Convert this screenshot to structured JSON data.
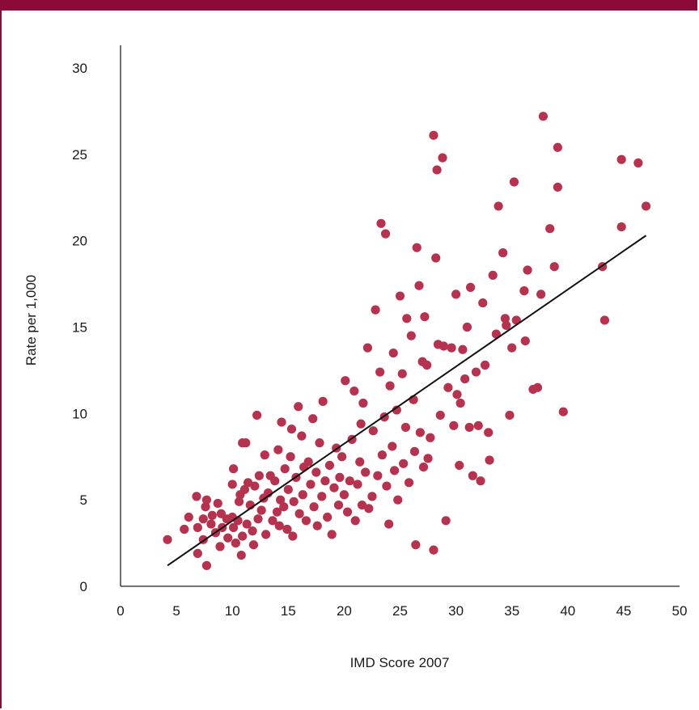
{
  "colors": {
    "accent": "#8b0a3a",
    "point": "#b5334f",
    "trend": "#111111",
    "axis": "#222222"
  },
  "chart_data": {
    "type": "scatter",
    "title": "",
    "xlabel": "IMD Score 2007",
    "ylabel": "Rate per 1,000",
    "xlim": [
      0,
      50
    ],
    "ylim": [
      0,
      30
    ],
    "x_ticks": [
      0,
      5,
      10,
      15,
      20,
      25,
      30,
      35,
      40,
      45,
      50
    ],
    "y_ticks": [
      0,
      5,
      10,
      15,
      20,
      25,
      30
    ],
    "grid": false,
    "legend": "none",
    "trendline": {
      "x": [
        4.2,
        47.0
      ],
      "y": [
        1.2,
        20.3
      ]
    },
    "points": [
      [
        4.2,
        2.7
      ],
      [
        5.7,
        3.3
      ],
      [
        6.1,
        4.0
      ],
      [
        6.8,
        5.2
      ],
      [
        6.9,
        3.4
      ],
      [
        6.9,
        1.9
      ],
      [
        7.4,
        3.9
      ],
      [
        7.4,
        2.7
      ],
      [
        7.6,
        4.6
      ],
      [
        7.7,
        5.0
      ],
      [
        7.7,
        1.2
      ],
      [
        8.1,
        3.6
      ],
      [
        8.2,
        4.1
      ],
      [
        8.5,
        3.1
      ],
      [
        8.7,
        4.8
      ],
      [
        8.9,
        2.3
      ],
      [
        9.0,
        4.2
      ],
      [
        9.1,
        3.4
      ],
      [
        9.5,
        3.9
      ],
      [
        9.6,
        2.8
      ],
      [
        10.0,
        4.0
      ],
      [
        10.0,
        5.9
      ],
      [
        10.1,
        6.8
      ],
      [
        10.1,
        3.4
      ],
      [
        10.3,
        2.5
      ],
      [
        10.5,
        3.8
      ],
      [
        10.6,
        4.9
      ],
      [
        10.7,
        5.3
      ],
      [
        10.8,
        1.8
      ],
      [
        10.9,
        8.3
      ],
      [
        10.9,
        2.9
      ],
      [
        11.1,
        5.6
      ],
      [
        11.2,
        8.3
      ],
      [
        11.3,
        3.6
      ],
      [
        11.4,
        6.0
      ],
      [
        11.6,
        4.7
      ],
      [
        11.8,
        3.2
      ],
      [
        11.9,
        2.4
      ],
      [
        12.0,
        5.8
      ],
      [
        12.2,
        9.9
      ],
      [
        12.3,
        3.9
      ],
      [
        12.4,
        6.4
      ],
      [
        12.6,
        4.4
      ],
      [
        12.8,
        5.1
      ],
      [
        12.9,
        7.6
      ],
      [
        13.0,
        3.0
      ],
      [
        13.2,
        5.4
      ],
      [
        13.4,
        6.4
      ],
      [
        13.6,
        3.8
      ],
      [
        13.8,
        6.1
      ],
      [
        14.0,
        4.3
      ],
      [
        14.1,
        7.9
      ],
      [
        14.2,
        3.5
      ],
      [
        14.3,
        5.0
      ],
      [
        14.4,
        9.5
      ],
      [
        14.6,
        4.6
      ],
      [
        14.7,
        6.8
      ],
      [
        14.9,
        3.3
      ],
      [
        15.0,
        5.6
      ],
      [
        15.2,
        7.5
      ],
      [
        15.3,
        9.1
      ],
      [
        15.4,
        2.9
      ],
      [
        15.5,
        4.9
      ],
      [
        15.7,
        6.3
      ],
      [
        15.9,
        10.4
      ],
      [
        16.0,
        4.2
      ],
      [
        16.2,
        8.7
      ],
      [
        16.3,
        5.3
      ],
      [
        16.4,
        6.9
      ],
      [
        16.6,
        3.8
      ],
      [
        16.8,
        7.2
      ],
      [
        17.0,
        5.9
      ],
      [
        17.2,
        9.7
      ],
      [
        17.3,
        4.6
      ],
      [
        17.5,
        6.6
      ],
      [
        17.6,
        3.5
      ],
      [
        17.8,
        8.3
      ],
      [
        18.0,
        5.2
      ],
      [
        18.1,
        10.7
      ],
      [
        18.3,
        6.1
      ],
      [
        18.5,
        4.0
      ],
      [
        18.7,
        7.0
      ],
      [
        18.9,
        3.0
      ],
      [
        19.1,
        5.7
      ],
      [
        19.3,
        8.0
      ],
      [
        19.5,
        4.7
      ],
      [
        19.6,
        6.3
      ],
      [
        19.8,
        7.5
      ],
      [
        20.0,
        5.3
      ],
      [
        20.1,
        11.9
      ],
      [
        20.3,
        4.3
      ],
      [
        20.5,
        6.1
      ],
      [
        20.7,
        8.5
      ],
      [
        20.9,
        11.3
      ],
      [
        21.0,
        3.8
      ],
      [
        21.2,
        5.9
      ],
      [
        21.4,
        7.2
      ],
      [
        21.5,
        9.4
      ],
      [
        21.6,
        4.7
      ],
      [
        21.7,
        10.6
      ],
      [
        21.9,
        6.6
      ],
      [
        22.1,
        13.8
      ],
      [
        22.2,
        4.5
      ],
      [
        22.5,
        5.2
      ],
      [
        22.6,
        9.0
      ],
      [
        22.8,
        16.0
      ],
      [
        23.0,
        6.4
      ],
      [
        23.2,
        12.4
      ],
      [
        23.3,
        21.0
      ],
      [
        23.4,
        7.6
      ],
      [
        23.6,
        9.8
      ],
      [
        23.7,
        20.4
      ],
      [
        23.8,
        5.8
      ],
      [
        24.0,
        3.6
      ],
      [
        24.1,
        11.6
      ],
      [
        24.3,
        8.1
      ],
      [
        24.4,
        13.5
      ],
      [
        24.5,
        6.7
      ],
      [
        24.7,
        10.2
      ],
      [
        24.8,
        5.0
      ],
      [
        25.0,
        16.8
      ],
      [
        25.2,
        12.3
      ],
      [
        25.3,
        7.1
      ],
      [
        25.5,
        9.2
      ],
      [
        25.6,
        15.5
      ],
      [
        25.8,
        6.0
      ],
      [
        26.0,
        14.5
      ],
      [
        26.2,
        10.8
      ],
      [
        26.3,
        7.8
      ],
      [
        26.4,
        2.4
      ],
      [
        26.5,
        19.6
      ],
      [
        26.7,
        17.4
      ],
      [
        26.8,
        8.9
      ],
      [
        27.0,
        13.0
      ],
      [
        27.1,
        6.9
      ],
      [
        27.2,
        15.6
      ],
      [
        27.4,
        12.8
      ],
      [
        27.5,
        7.4
      ],
      [
        27.7,
        8.6
      ],
      [
        28.0,
        2.1
      ],
      [
        28.0,
        26.1
      ],
      [
        28.2,
        19.0
      ],
      [
        28.3,
        24.1
      ],
      [
        28.4,
        14.0
      ],
      [
        28.6,
        9.9
      ],
      [
        28.8,
        24.8
      ],
      [
        28.9,
        13.9
      ],
      [
        29.1,
        3.8
      ],
      [
        29.3,
        11.5
      ],
      [
        29.6,
        13.8
      ],
      [
        29.8,
        9.3
      ],
      [
        30.0,
        16.9
      ],
      [
        30.1,
        11.1
      ],
      [
        30.3,
        7.0
      ],
      [
        30.4,
        10.6
      ],
      [
        30.6,
        13.7
      ],
      [
        30.8,
        12.0
      ],
      [
        31.0,
        15.0
      ],
      [
        31.2,
        9.2
      ],
      [
        31.3,
        17.3
      ],
      [
        31.5,
        6.4
      ],
      [
        31.8,
        12.4
      ],
      [
        32.0,
        9.3
      ],
      [
        32.2,
        6.1
      ],
      [
        32.4,
        16.4
      ],
      [
        32.6,
        12.8
      ],
      [
        32.9,
        8.9
      ],
      [
        33.0,
        7.3
      ],
      [
        33.3,
        18.0
      ],
      [
        33.6,
        14.6
      ],
      [
        33.8,
        22.0
      ],
      [
        34.2,
        19.3
      ],
      [
        34.4,
        15.5
      ],
      [
        34.5,
        15.1
      ],
      [
        34.8,
        9.9
      ],
      [
        35.0,
        13.8
      ],
      [
        35.2,
        23.4
      ],
      [
        35.4,
        15.4
      ],
      [
        36.1,
        17.1
      ],
      [
        36.2,
        14.2
      ],
      [
        36.4,
        18.3
      ],
      [
        36.9,
        11.4
      ],
      [
        37.3,
        11.5
      ],
      [
        37.6,
        16.9
      ],
      [
        37.8,
        27.2
      ],
      [
        38.4,
        20.7
      ],
      [
        38.8,
        18.5
      ],
      [
        39.1,
        25.4
      ],
      [
        39.1,
        23.1
      ],
      [
        39.6,
        10.1
      ],
      [
        43.1,
        18.5
      ],
      [
        43.3,
        15.4
      ],
      [
        44.8,
        24.7
      ],
      [
        44.8,
        20.8
      ],
      [
        46.3,
        24.5
      ],
      [
        47.0,
        22.0
      ]
    ]
  }
}
